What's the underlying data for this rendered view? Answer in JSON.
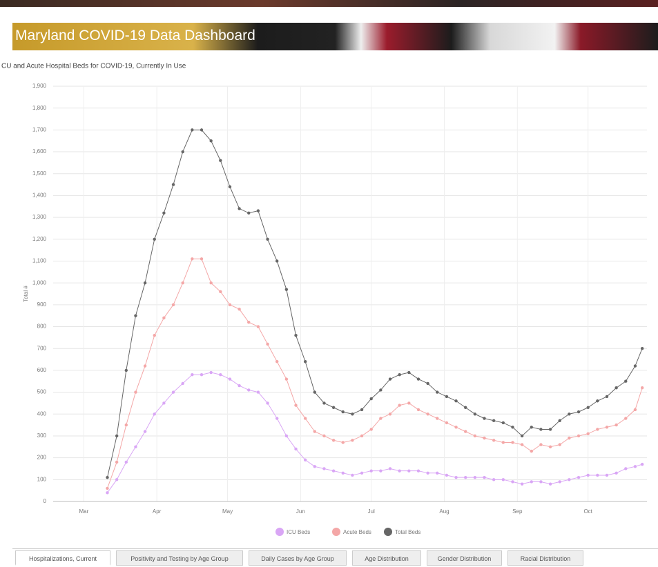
{
  "header": {
    "title": "Maryland COVID-19 Data Dashboard"
  },
  "chart_data": {
    "type": "line",
    "title": "CU and Acute Hospital Beds for COVID-19, Currently In Use",
    "y_label": "Total #",
    "x": [
      85,
      89,
      93,
      97,
      101,
      105,
      109,
      113,
      117,
      121,
      125,
      129,
      133,
      137,
      141,
      145,
      149,
      153,
      157,
      161,
      165,
      169,
      173,
      177,
      181,
      185,
      189,
      193,
      197,
      201,
      205,
      209,
      213,
      217,
      221,
      225,
      229,
      233,
      237,
      241,
      245,
      249,
      253,
      257,
      261,
      265,
      269,
      273,
      277,
      281,
      285,
      289,
      293,
      297,
      301,
      305,
      309,
      312
    ],
    "xlim": [
      62,
      314
    ],
    "xticks": [
      {
        "value": 75,
        "label": "Mar"
      },
      {
        "value": 106,
        "label": "Apr"
      },
      {
        "value": 136,
        "label": "May"
      },
      {
        "value": 167,
        "label": "Jun"
      },
      {
        "value": 197,
        "label": "Jul"
      },
      {
        "value": 228,
        "label": "Aug"
      },
      {
        "value": 259,
        "label": "Sep"
      },
      {
        "value": 289,
        "label": "Oct"
      }
    ],
    "ylim": [
      0,
      1900
    ],
    "yticks": [
      0,
      100,
      200,
      300,
      400,
      500,
      600,
      700,
      800,
      900,
      {
        "value": 1000,
        "label": "1,000"
      },
      {
        "value": 1100,
        "label": "1,100"
      },
      {
        "value": 1200,
        "label": "1,200"
      },
      {
        "value": 1300,
        "label": "1,300"
      },
      {
        "value": 1400,
        "label": "1,400"
      },
      {
        "value": 1500,
        "label": "1,500"
      },
      {
        "value": 1600,
        "label": "1,600"
      },
      {
        "value": 1700,
        "label": "1,700"
      },
      {
        "value": 1800,
        "label": "1,800"
      },
      {
        "value": 1900,
        "label": "1,900"
      }
    ],
    "grid": true,
    "legend": "bottom",
    "series": [
      {
        "name": "ICU Beds",
        "color": "#d9a6f5",
        "values": [
          40,
          100,
          180,
          250,
          320,
          400,
          450,
          500,
          540,
          580,
          580,
          590,
          580,
          560,
          530,
          510,
          500,
          450,
          380,
          300,
          240,
          190,
          160,
          150,
          140,
          130,
          120,
          130,
          140,
          140,
          150,
          140,
          140,
          140,
          130,
          130,
          120,
          110,
          110,
          110,
          110,
          100,
          100,
          90,
          80,
          90,
          90,
          80,
          90,
          100,
          110,
          120,
          120,
          120,
          130,
          150,
          160,
          170
        ]
      },
      {
        "name": "Acute Beds",
        "color": "#f4a7a7",
        "values": [
          60,
          180,
          350,
          500,
          620,
          760,
          840,
          900,
          1000,
          1110,
          1110,
          1000,
          960,
          900,
          880,
          820,
          800,
          720,
          640,
          560,
          440,
          380,
          320,
          300,
          280,
          270,
          280,
          300,
          330,
          380,
          400,
          440,
          450,
          420,
          400,
          380,
          360,
          340,
          320,
          300,
          290,
          280,
          270,
          270,
          260,
          230,
          260,
          250,
          260,
          290,
          300,
          310,
          330,
          340,
          350,
          380,
          420,
          520
        ]
      },
      {
        "name": "Total Beds",
        "color": "#666666",
        "values": [
          110,
          300,
          600,
          850,
          1000,
          1200,
          1320,
          1450,
          1600,
          1700,
          1700,
          1650,
          1560,
          1440,
          1340,
          1320,
          1330,
          1200,
          1100,
          970,
          760,
          640,
          500,
          450,
          430,
          410,
          400,
          420,
          470,
          510,
          560,
          580,
          590,
          560,
          540,
          500,
          480,
          460,
          430,
          400,
          380,
          370,
          360,
          340,
          300,
          340,
          330,
          330,
          370,
          400,
          410,
          430,
          460,
          480,
          520,
          550,
          620,
          700
        ]
      }
    ]
  },
  "tabs": [
    "Hospitalizations, Current",
    "Positivity and Testing by Age Group",
    "Daily Cases by Age Group",
    "Age Distribution",
    "Gender Distribution",
    "Racial Distribution"
  ]
}
